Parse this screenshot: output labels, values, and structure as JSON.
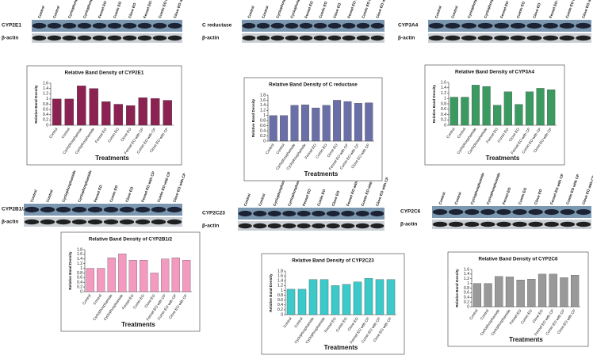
{
  "blot_lanes": [
    "Control",
    "Control",
    "Cyclophosphamide",
    "Cyclophosphamide",
    "Fennel EO",
    "Cumin EO",
    "Clove EO",
    "Fennel EO with CP",
    "Cumin EO with CP",
    "Clove EO with CP"
  ],
  "blots": [
    {
      "target": "CYP2E1",
      "loading": "β-actin"
    },
    {
      "target": "C reductase",
      "loading": "β-actin"
    },
    {
      "target": "CYP3A4",
      "loading": "β-actin"
    },
    {
      "target": "CYP2B1/2",
      "loading": "β-actin"
    },
    {
      "target": "CYP2C23",
      "loading": "β-actin"
    },
    {
      "target": "CYP2C6",
      "loading": "β-actin"
    }
  ],
  "chart_data": [
    {
      "type": "bar",
      "title": "Relative Band Density of CYP2E1",
      "ylabel": "Relative Band Density",
      "xlabel": "Treatments",
      "categories": [
        "Control",
        "Control",
        "Cyclophosphamide",
        "Cyclophosphamide",
        "Fennel EO",
        "Cumin EO",
        "Clove EO",
        "Fennel EO with CP",
        "Cumin EO with CP",
        "Clove EO with CP"
      ],
      "values": [
        1.0,
        1.0,
        1.5,
        1.4,
        0.9,
        0.8,
        0.75,
        1.05,
        1.02,
        0.95
      ],
      "color": "#8b2252",
      "ylim": [
        0,
        1.6
      ],
      "yticks": [
        0,
        0.2,
        0.4,
        0.6,
        0.8,
        1,
        1.2,
        1.4,
        1.6
      ]
    },
    {
      "type": "bar",
      "title": "Relative Band Density of C reductase",
      "ylabel": "Relative Band Density",
      "xlabel": "Treatments",
      "categories": [
        "Control",
        "Control",
        "Cyclophosphamide",
        "Cyclophosphamide",
        "Fennel EO",
        "Cumin EO",
        "Clove EO",
        "Fennel EO with CP",
        "Cumin EO with CP",
        "Clove EO with CP"
      ],
      "values": [
        1.0,
        1.0,
        1.4,
        1.42,
        1.3,
        1.4,
        1.6,
        1.55,
        1.48,
        1.5
      ],
      "color": "#6a6fa8",
      "ylim": [
        0,
        1.8
      ],
      "yticks": [
        0,
        0.2,
        0.4,
        0.6,
        0.8,
        1,
        1.2,
        1.4,
        1.6,
        1.8
      ]
    },
    {
      "type": "bar",
      "title": "Relative Band Density of CYP3A4",
      "ylabel": "Relative Band Density",
      "xlabel": "Treatments",
      "categories": [
        "Control",
        "Control",
        "Cyclophosphamide",
        "Cyclophosphamide",
        "Fennel EO",
        "Cumin EO",
        "Clove EO",
        "Fennel EO with CP",
        "Cumin EO with CP",
        "Clove EO with CP"
      ],
      "values": [
        1.05,
        1.05,
        1.5,
        1.45,
        0.75,
        1.25,
        0.78,
        1.25,
        1.38,
        1.33
      ],
      "color": "#3a9a60",
      "ylim": [
        0,
        1.6
      ],
      "yticks": [
        0,
        0.2,
        0.4,
        0.6,
        0.8,
        1,
        1.2,
        1.4,
        1.6
      ]
    },
    {
      "type": "bar",
      "title": "Relative Band Density of CYP2B1/2",
      "ylabel": "Relative Band Density",
      "xlabel": "Treatments",
      "categories": [
        "Control",
        "Control",
        "Cyclophosphamide",
        "Cyclophosphamide",
        "Fennel EO",
        "Cumin EO",
        "Clove EO",
        "Fennel EO with CP",
        "Cumin EO with CP",
        "Clove EO with CP"
      ],
      "values": [
        1.0,
        1.0,
        1.45,
        1.62,
        1.35,
        1.35,
        0.8,
        1.4,
        1.45,
        1.35
      ],
      "color": "#f49ac1",
      "ylim": [
        0,
        1.8
      ],
      "yticks": [
        0,
        0.2,
        0.4,
        0.6,
        0.8,
        1,
        1.2,
        1.4,
        1.6,
        1.8
      ]
    },
    {
      "type": "bar",
      "title": "Relative Band Density of CYP2C23",
      "ylabel": "Relative Band Density",
      "xlabel": "Treatments",
      "categories": [
        "Control",
        "Control",
        "Cyclophosphamide",
        "Cyclophosphamide",
        "Fennel EO",
        "Cumin EO",
        "Clove EO",
        "Fennel EO with CP",
        "Cumin EO with CP",
        "Clove EO with CP"
      ],
      "values": [
        1.05,
        1.05,
        1.45,
        1.45,
        1.2,
        1.25,
        1.35,
        1.5,
        1.45,
        1.45
      ],
      "color": "#3cc9c9",
      "ylim": [
        0,
        1.8
      ],
      "yticks": [
        0,
        0.2,
        0.4,
        0.6,
        0.8,
        1,
        1.2,
        1.4,
        1.6,
        1.8
      ]
    },
    {
      "type": "bar",
      "title": "Relative Band Density of CYP2C6",
      "ylabel": "Relative Band Density",
      "xlabel": "Treatments",
      "categories": [
        "Control",
        "Control",
        "Cyclophosphamide",
        "Cyclophosphamide",
        "Fennel EO",
        "Cumin EO",
        "Clove EO",
        "Fennel EO with CP",
        "Cumin EO with CP",
        "Clove EO with CP"
      ],
      "values": [
        1.0,
        1.0,
        1.3,
        1.28,
        1.15,
        1.18,
        1.4,
        1.4,
        1.25,
        1.35
      ],
      "color": "#999999",
      "ylim": [
        0,
        1.6
      ],
      "yticks": [
        0,
        0.2,
        0.4,
        0.6,
        0.8,
        1,
        1.2,
        1.4,
        1.6
      ]
    }
  ]
}
